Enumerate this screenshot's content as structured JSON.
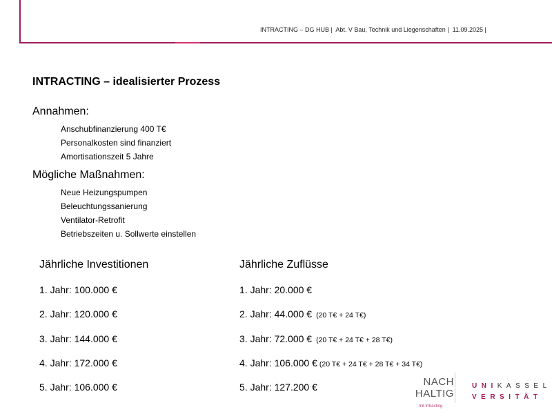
{
  "header": {
    "text": "INTRACTING – DG HUB |  Abt. V Bau, Technik und Liegenschaften |  11.09.2025 |"
  },
  "title": "INTRACTING – idealisierter Prozess",
  "assumptions": {
    "heading": "Annahmen:",
    "items": [
      "Anschubfinanzierung 400 T€",
      "Personalkosten sind finanziert",
      "Amortisationszeit 5 Jahre"
    ]
  },
  "measures": {
    "heading": "Mögliche Maßnahmen:",
    "items": [
      "Neue Heizungspumpen",
      "Beleuchtungssanierung",
      "Ventilator-Retrofit",
      "Betriebszeiten u. Sollwerte einstellen"
    ]
  },
  "investments": {
    "heading": "Jährliche Investitionen",
    "rows": [
      "1. Jahr: 100.000 €",
      "2. Jahr: 120.000 €",
      "3. Jahr: 144.000 €",
      "4. Jahr: 172.000 €",
      "5. Jahr: 106.000 €"
    ]
  },
  "inflows": {
    "heading": "Jährliche Zuflüsse",
    "rows": [
      {
        "text": "1. Jahr: 20.000 €",
        "note": ""
      },
      {
        "text": "2. Jahr: 44.000 €",
        "note": "(20 T€ + 24 T€)"
      },
      {
        "text": "3. Jahr: 72.000 €",
        "note": "(20 T€ + 24 T€ + 28 T€)"
      },
      {
        "text": "4. Jahr: 106.000 €",
        "note": "(20 T€ + 24 T€ + 28 T€ + 34 T€)"
      },
      {
        "text": "5. Jahr: 127.200 €",
        "note": ""
      }
    ]
  },
  "logos": {
    "nachhaltig_line1": "NACH",
    "nachhaltig_line2": "HALTIG",
    "nachhaltig_sub": "mit Intracting",
    "uni_line1_a": "UNI",
    "uni_line1_b": "KASSEL",
    "uni_line2": "VERSITÄT"
  },
  "colors": {
    "accent": "#9c1d5a"
  }
}
